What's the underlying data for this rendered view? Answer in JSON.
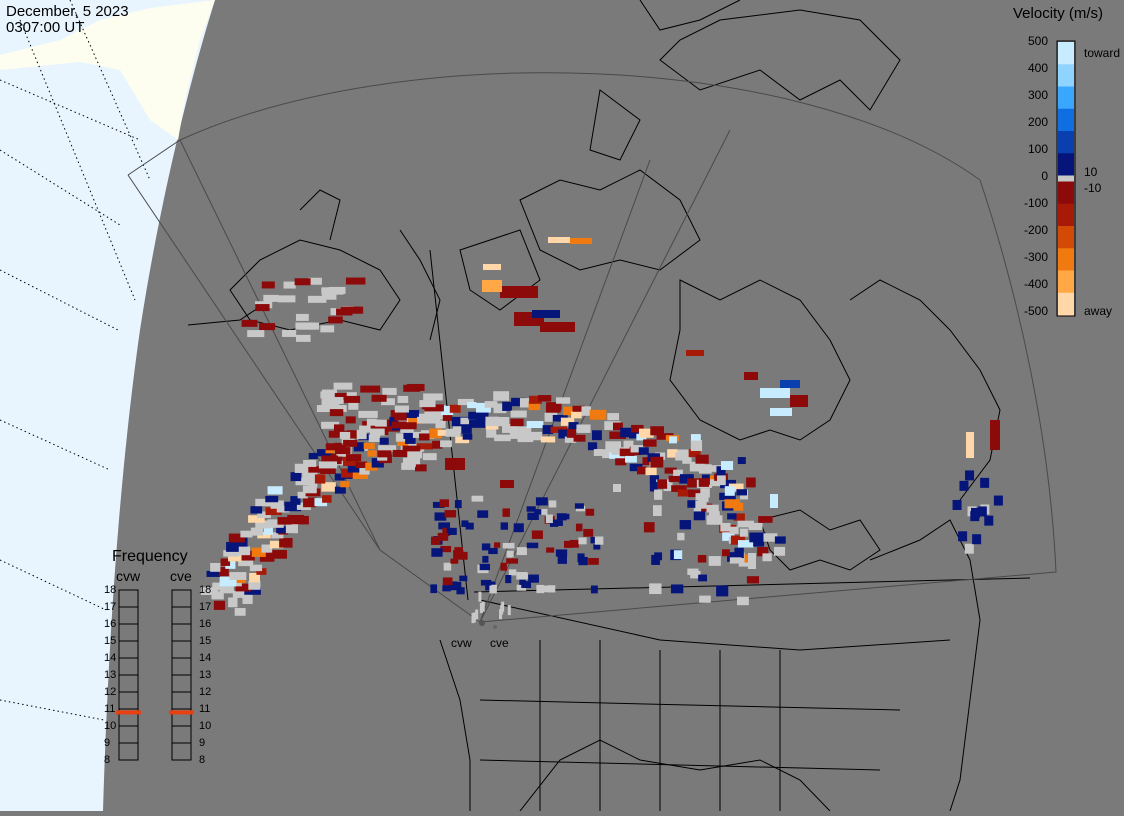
{
  "header": {
    "date": "December, 5 2023",
    "time": "0307:00 UT"
  },
  "map": {
    "background_color": "#7a7a7a",
    "daylight_color": "#e8f5ff",
    "daylight_land_color": "#fdfdf0",
    "coastline_color": "#000000",
    "unused_cell_color": "#c8c8c8"
  },
  "colorbar": {
    "title": "Velocity (m/s)",
    "ticks": [
      "500",
      "400",
      "300",
      "200",
      "100",
      "10",
      "0",
      "-10",
      "-100",
      "-200",
      "-300",
      "-400",
      "-500"
    ],
    "toward_label": "toward",
    "away_label": "away",
    "colors_toward": [
      "#c8ecff",
      "#8fd4ff",
      "#3aa7ff",
      "#0f6fe0",
      "#0a3fb0",
      "#05157a"
    ],
    "colors_away": [
      "#8c0a0a",
      "#a81a08",
      "#d24a05",
      "#f07a10",
      "#ffa845",
      "#ffd7a8"
    ]
  },
  "frequency": {
    "title": "Frequency",
    "radars": [
      {
        "name": "cvw",
        "value_mhz": 10.8
      },
      {
        "name": "cve",
        "value_mhz": 10.8
      }
    ],
    "scale": [
      "18",
      "17",
      "16",
      "15",
      "14",
      "13",
      "12",
      "11",
      "10",
      "9",
      "8"
    ],
    "indicator_color": "#e84010"
  },
  "sites": [
    {
      "label": "cvw"
    },
    {
      "label": "cve"
    }
  ]
}
